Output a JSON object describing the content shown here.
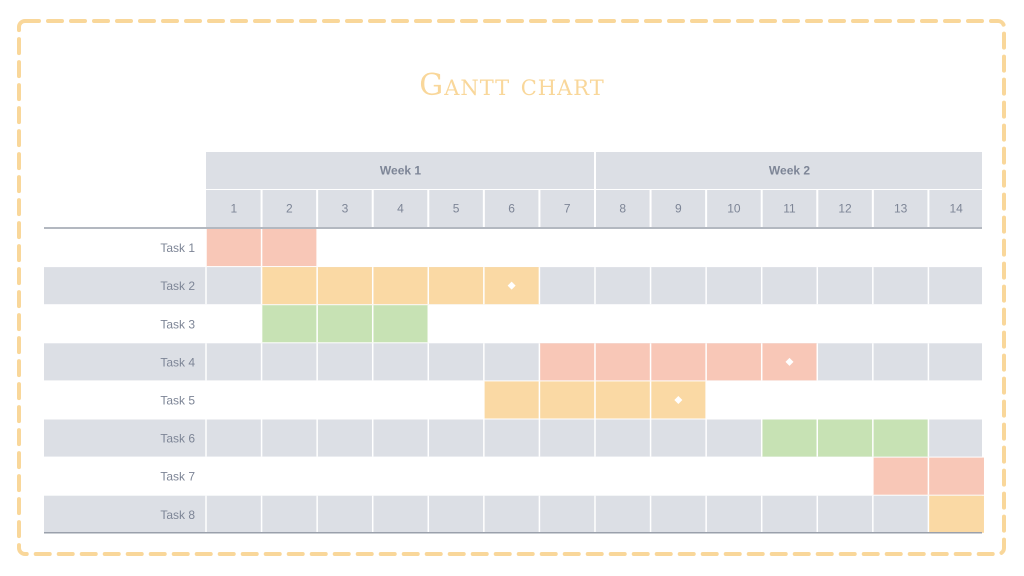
{
  "slide": {
    "title": "Gantt chart",
    "border_color": "#f9d79a"
  },
  "chart_data": {
    "type": "gantt",
    "title": "Gantt chart",
    "weeks": [
      {
        "label": "Week 1",
        "days": [
          1,
          7
        ]
      },
      {
        "label": "Week 2",
        "days": [
          8,
          14
        ]
      }
    ],
    "days": [
      "1",
      "2",
      "3",
      "4",
      "5",
      "6",
      "7",
      "8",
      "9",
      "10",
      "11",
      "12",
      "13",
      "14"
    ],
    "tasks": [
      {
        "label": "Task 1",
        "start": 1,
        "end": 2,
        "color": "#f8c7b7",
        "milestone": null
      },
      {
        "label": "Task 2",
        "start": 2,
        "end": 6,
        "color": "#fad9a4",
        "milestone": 6
      },
      {
        "label": "Task 3",
        "start": 2,
        "end": 4,
        "color": "#c7e2b4",
        "milestone": null
      },
      {
        "label": "Task 4",
        "start": 7,
        "end": 11,
        "color": "#f8c7b7",
        "milestone": 11
      },
      {
        "label": "Task 5",
        "start": 6,
        "end": 9,
        "color": "#fad9a4",
        "milestone": 9
      },
      {
        "label": "Task 6",
        "start": 11,
        "end": 13,
        "color": "#c7e2b4",
        "milestone": null
      },
      {
        "label": "Task 7",
        "start": 13,
        "end": 14,
        "color": "#f8c7b7",
        "milestone": null
      },
      {
        "label": "Task 8",
        "start": 14,
        "end": 14,
        "color": "#fad9a4",
        "milestone": null
      }
    ],
    "colors": {
      "header_bg": "#dcdfe5",
      "stripe_bg": "#dcdfe5",
      "grid_line": "#ffffff",
      "rule": "#9aa0ab",
      "text": "#7d8596"
    }
  }
}
